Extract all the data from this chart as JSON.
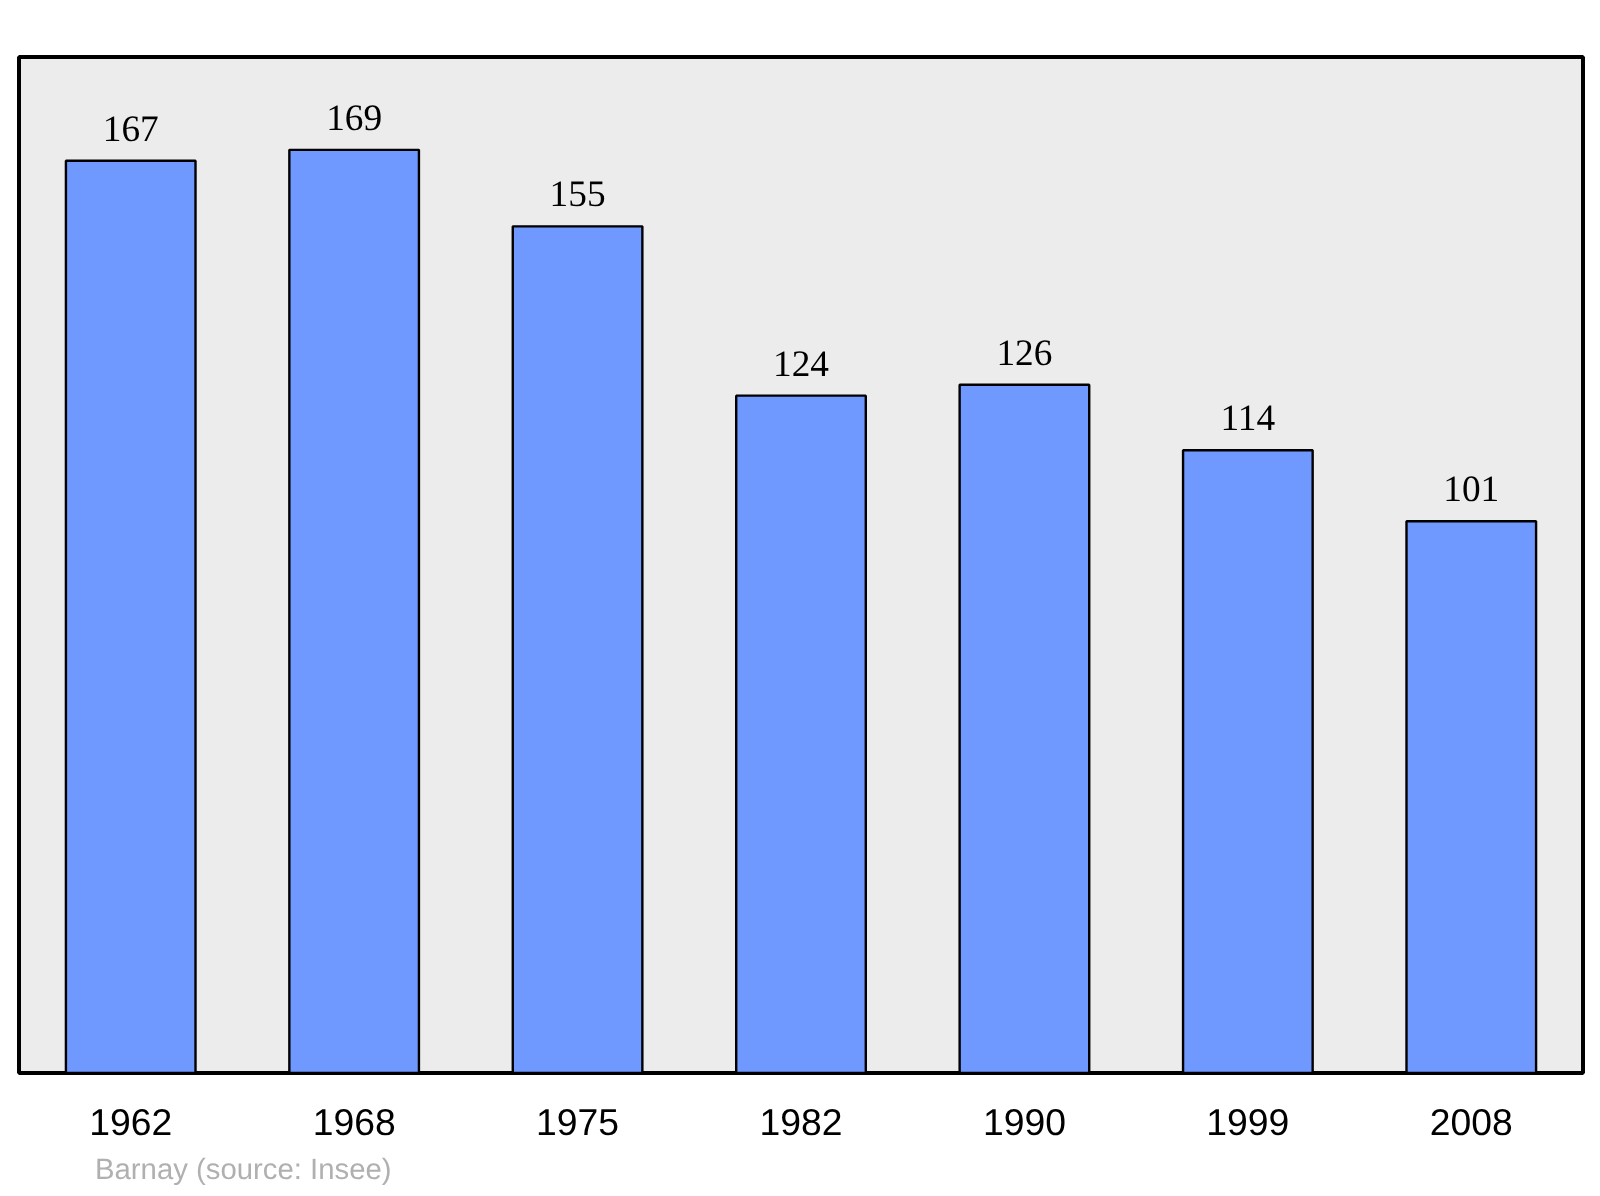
{
  "chart_data": {
    "type": "bar",
    "categories": [
      "1962",
      "1968",
      "1975",
      "1982",
      "1990",
      "1999",
      "2008"
    ],
    "values": [
      167,
      169,
      155,
      124,
      126,
      114,
      101
    ],
    "color": "#7099ff",
    "data_labels": true,
    "ylim": [
      0,
      186
    ],
    "tick_labels": "x",
    "grid": false,
    "annotations": [
      "Barnay    (source: Insee)"
    ]
  }
}
